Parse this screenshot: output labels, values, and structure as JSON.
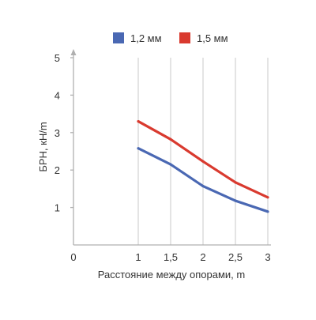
{
  "chart_data": {
    "type": "line",
    "title": "",
    "xlabel": "Расстояние между опорами, m",
    "ylabel": "БРН, кН/m",
    "x_ticks": [
      {
        "value": 0,
        "label": "0"
      },
      {
        "value": 1,
        "label": "1"
      },
      {
        "value": 1.5,
        "label": "1,5"
      },
      {
        "value": 2,
        "label": "2"
      },
      {
        "value": 2.5,
        "label": "2,5"
      },
      {
        "value": 3,
        "label": "3"
      }
    ],
    "y_ticks": [
      {
        "value": 1,
        "label": "1"
      },
      {
        "value": 2,
        "label": "2"
      },
      {
        "value": 3,
        "label": "3"
      },
      {
        "value": 4,
        "label": "4"
      },
      {
        "value": 5,
        "label": "5"
      }
    ],
    "xlim": [
      0,
      3
    ],
    "ylim": [
      0,
      5
    ],
    "grid": {
      "vertical": true,
      "horizontal": false
    },
    "legend_position": "top-center",
    "x": [
      1,
      1.5,
      2,
      2.5,
      3
    ],
    "series": [
      {
        "name": "1,2 мм",
        "color": "#4a68b3",
        "values": [
          2.58,
          2.15,
          1.57,
          1.18,
          0.89
        ]
      },
      {
        "name": "1,5 мм",
        "color": "#d93a2f",
        "values": [
          3.3,
          2.82,
          2.23,
          1.67,
          1.27
        ]
      }
    ]
  }
}
